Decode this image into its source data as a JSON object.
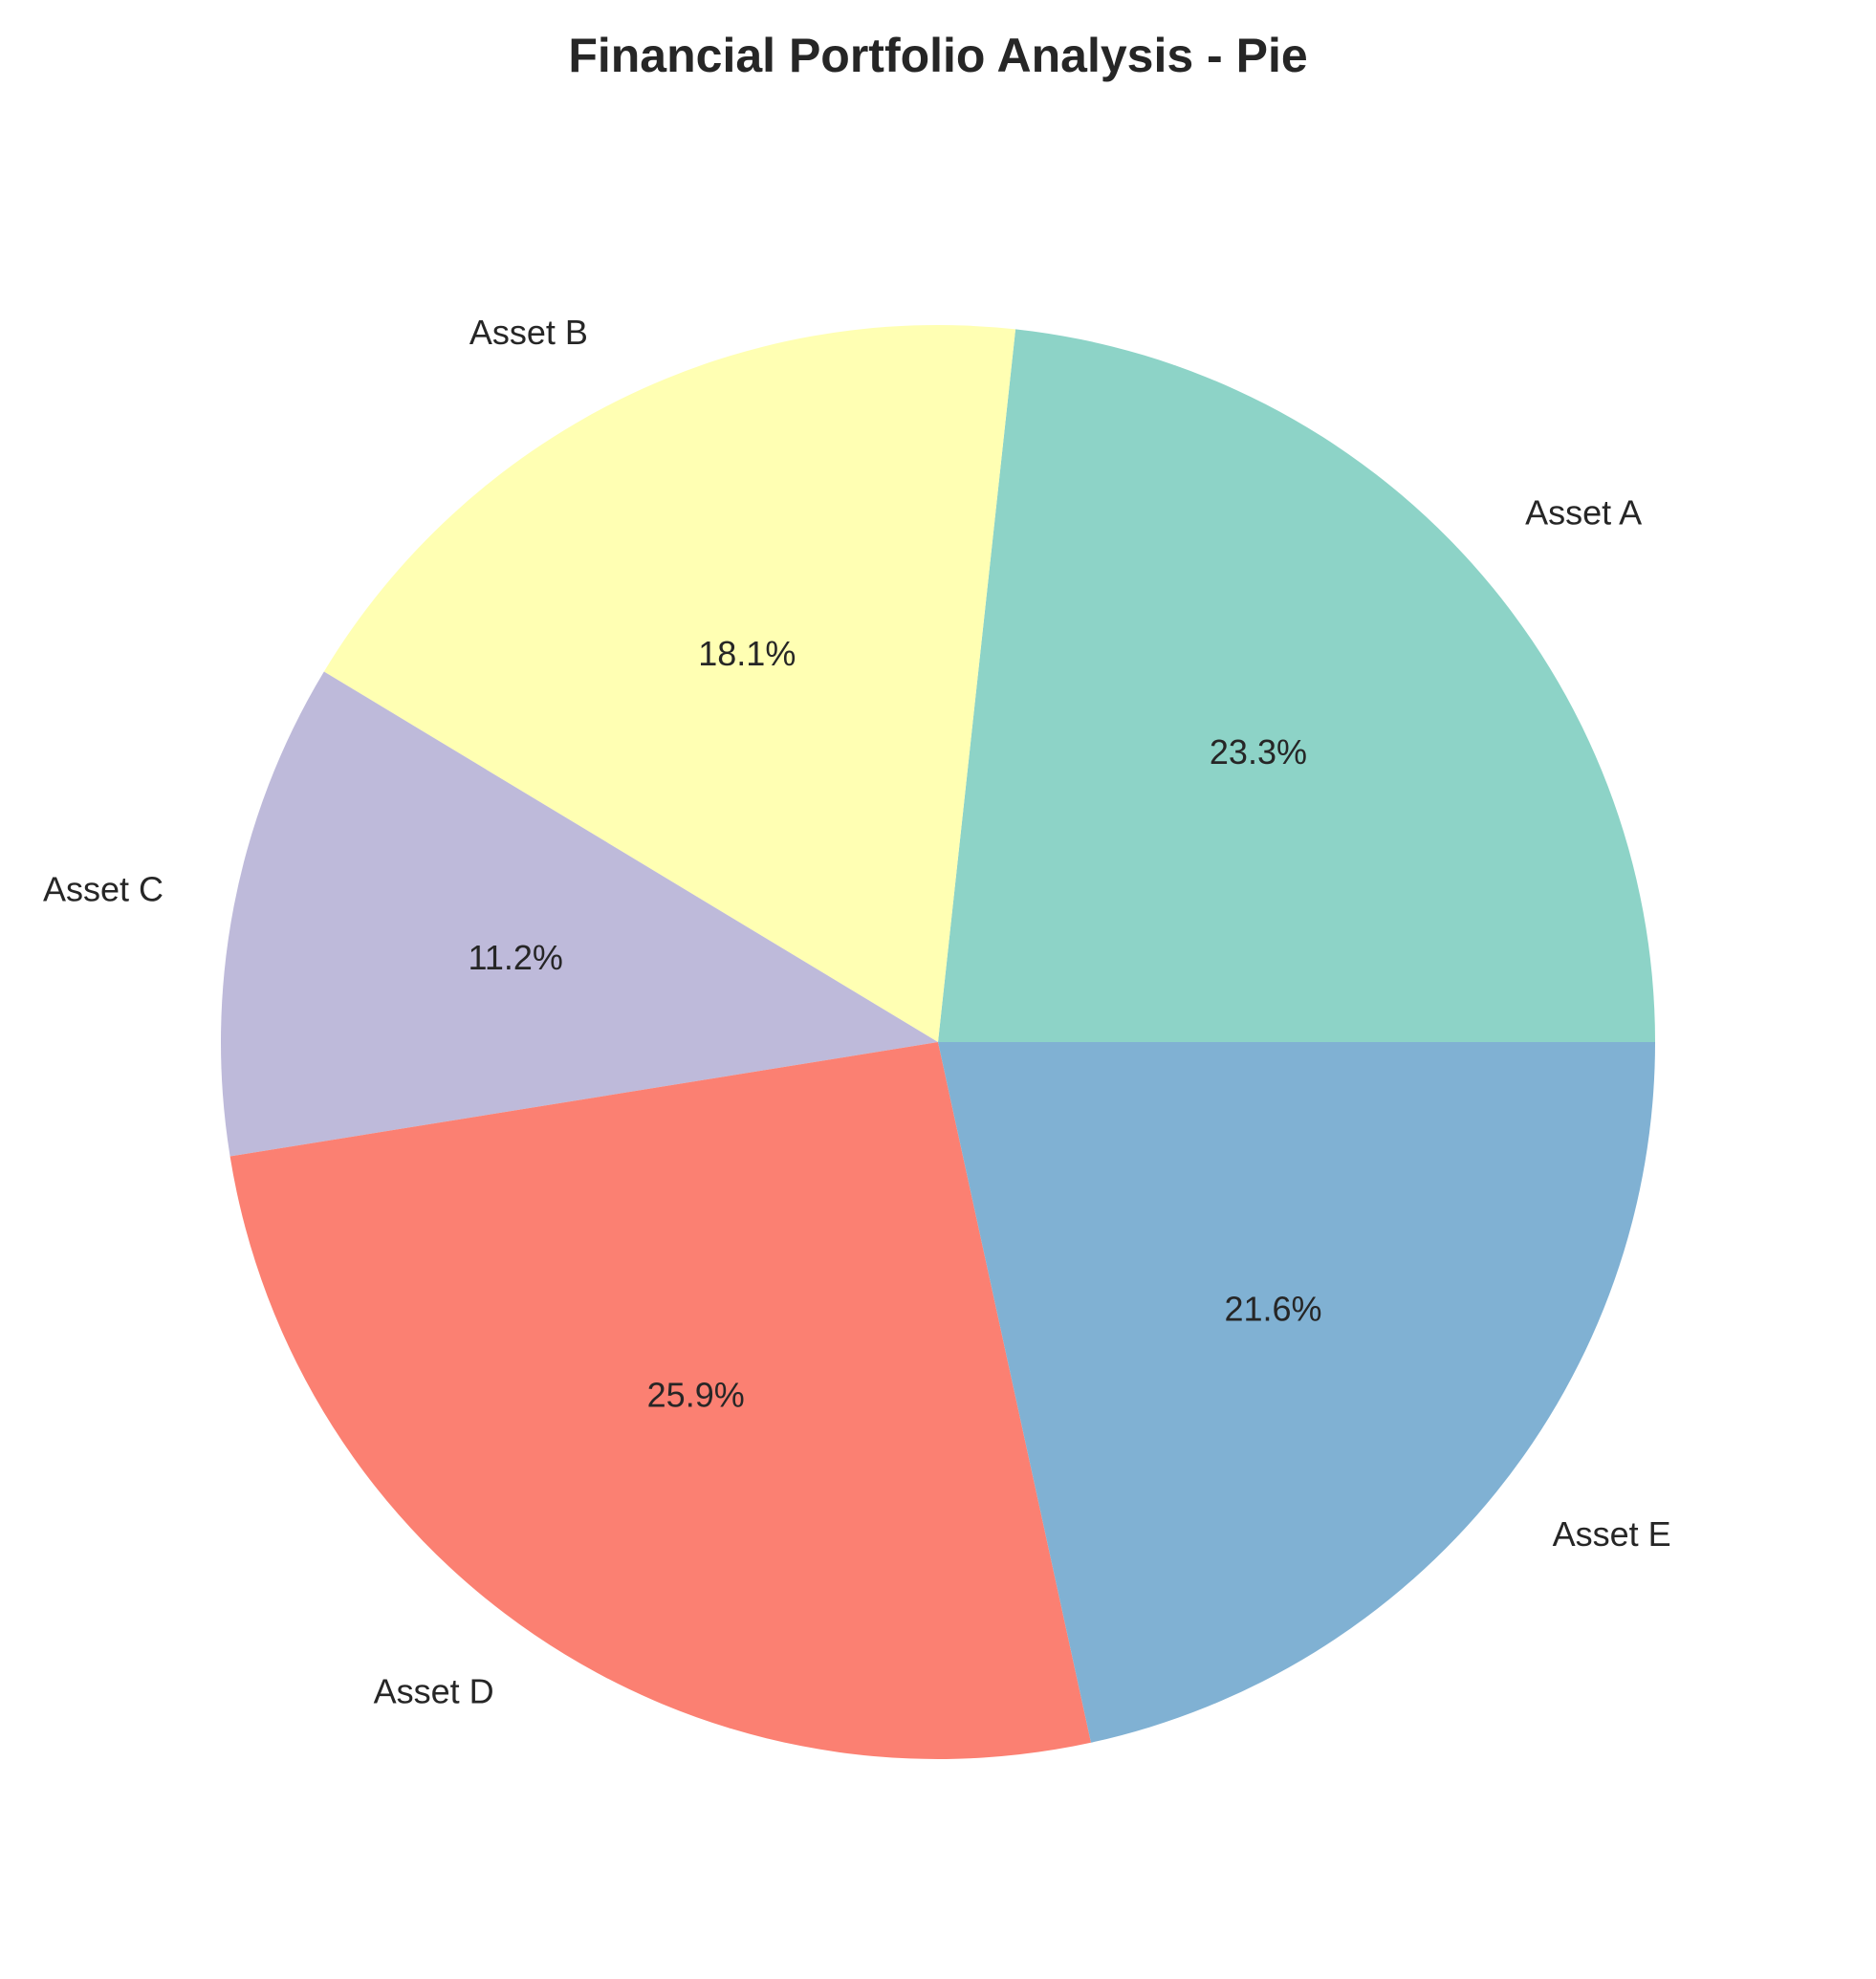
{
  "chart_data": {
    "type": "pie",
    "title": "Financial Portfolio Analysis - Pie",
    "categories": [
      "Asset A",
      "Asset B",
      "Asset C",
      "Asset D",
      "Asset E"
    ],
    "values": [
      23.3,
      18.1,
      11.2,
      25.9,
      21.6
    ],
    "value_labels": [
      "23.3%",
      "18.1%",
      "11.2%",
      "25.9%",
      "21.6%"
    ],
    "colors": [
      "#8dd3c7",
      "#ffffb3",
      "#bebada",
      "#fb8072",
      "#80b1d3"
    ],
    "start_angle_deg": 0,
    "direction": "counterclockwise"
  }
}
